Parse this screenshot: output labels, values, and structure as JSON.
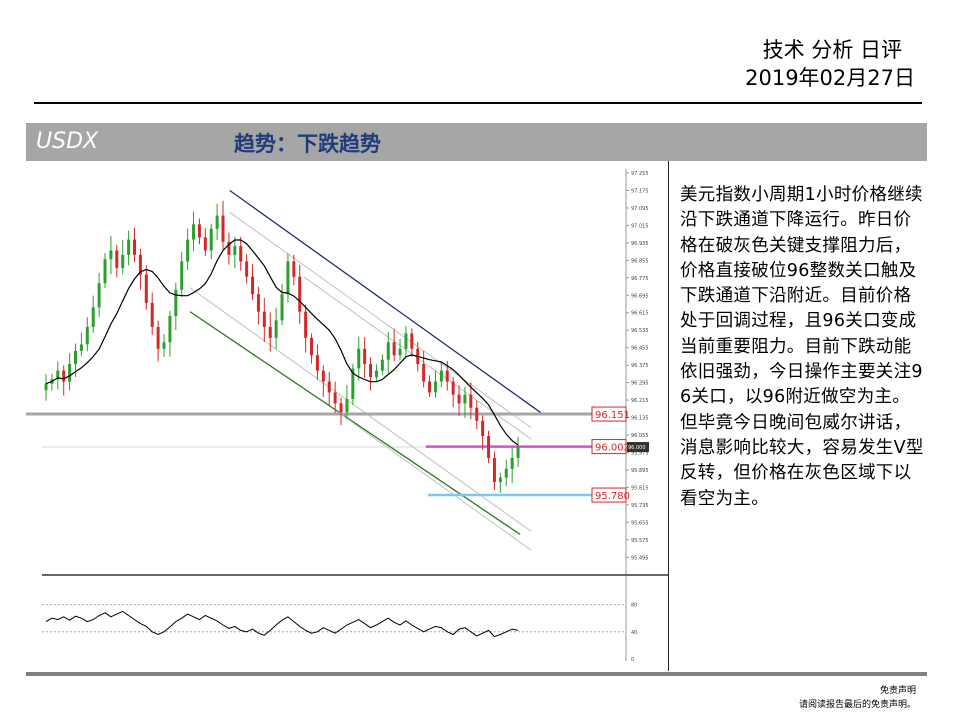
{
  "header": {
    "title": "技术 分析 日评",
    "date": "2019年02月27日"
  },
  "banner": {
    "symbol": "USDX",
    "trend": "趋势：下跌趋势"
  },
  "commentary": "美元指数小周期1小时价格继续沿下跌通道下降运行。昨日价格在破灰色关键支撑阻力后，价格直接破位96整数关口触及下跌通道下沿附近。目前价格处于回调过程，且96关口变成当前重要阻力。目前下跌动能依旧强劲，今日操作主要关注96关口，以96附近做空为主。但毕竟今日晚间包威尔讲话，消息影响比较大，容易发生V型反转，但价格在灰色区域下以看空为主。",
  "disclaimer": {
    "line1": "免责声明",
    "line2": "请阅读报告最后的免责声明。"
  },
  "colors": {
    "bull": "#2ca02c",
    "bear": "#d62728",
    "ma": "#000000",
    "channel_top": "#1f2a8c",
    "channel_bottom": "#2b7a1f",
    "channel_mid": "#c0c0c0",
    "support_gray": "#a6a6a6",
    "level_magenta": "#d94fd0",
    "level_blue": "#7ec8f0"
  },
  "chart_data": {
    "type": "candlestick",
    "timeframe": "1小时",
    "ylim": [
      95.455,
      97.255
    ],
    "yticks": [
      97.255,
      97.175,
      97.095,
      97.015,
      96.935,
      96.855,
      96.775,
      96.695,
      96.615,
      96.535,
      96.455,
      96.375,
      96.295,
      96.215,
      96.135,
      96.055,
      95.975,
      95.895,
      95.815,
      95.735,
      95.655,
      95.575,
      95.495
    ],
    "price_tag": "96.000",
    "levels": [
      {
        "value": 96.151,
        "label": "96.151",
        "color": "support_gray"
      },
      {
        "value": 96.002,
        "label": "96.002",
        "color": "level_magenta"
      },
      {
        "value": 95.78,
        "label": "95.780",
        "color": "level_blue"
      }
    ],
    "channel": {
      "top": [
        [
          0.33,
          97.175
        ],
        [
          0.88,
          96.151
        ]
      ],
      "bottom": [
        [
          0.26,
          96.62
        ],
        [
          0.84,
          95.6
        ]
      ]
    },
    "close": [
      96.29,
      96.31,
      96.35,
      96.3,
      96.38,
      96.44,
      96.47,
      96.55,
      96.64,
      96.75,
      96.86,
      96.9,
      96.82,
      96.88,
      96.95,
      96.88,
      96.79,
      96.66,
      96.55,
      96.45,
      96.48,
      96.6,
      96.72,
      96.85,
      96.95,
      97.02,
      96.96,
      96.9,
      97.0,
      97.06,
      96.94,
      96.88,
      96.92,
      96.85,
      96.78,
      96.7,
      96.62,
      96.55,
      96.5,
      96.58,
      96.7,
      96.85,
      96.78,
      96.62,
      96.5,
      96.42,
      96.35,
      96.3,
      96.25,
      96.2,
      96.16,
      96.22,
      96.36,
      96.45,
      96.38,
      96.32,
      96.35,
      96.4,
      96.48,
      96.42,
      96.45,
      96.52,
      96.45,
      96.38,
      96.3,
      96.25,
      96.3,
      96.35,
      96.3,
      96.24,
      96.2,
      96.24,
      96.18,
      96.12,
      96.05,
      95.95,
      95.84,
      95.86,
      95.9,
      95.95,
      96.0
    ],
    "oscillator": {
      "ylim": [
        0,
        100
      ],
      "ticks": [
        80,
        40,
        0
      ],
      "values": [
        55,
        60,
        58,
        62,
        57,
        63,
        60,
        55,
        58,
        64,
        68,
        62,
        66,
        70,
        64,
        58,
        52,
        48,
        40,
        36,
        40,
        47,
        55,
        60,
        66,
        62,
        58,
        64,
        60,
        56,
        50,
        45,
        48,
        42,
        40,
        44,
        38,
        35,
        42,
        50,
        57,
        62,
        55,
        48,
        42,
        38,
        40,
        46,
        42,
        38,
        44,
        50,
        54,
        58,
        52,
        46,
        50,
        55,
        60,
        54,
        50,
        56,
        50,
        45,
        40,
        44,
        48,
        46,
        40,
        36,
        44,
        46,
        40,
        34,
        38,
        42,
        33,
        36,
        40,
        44,
        42
      ]
    }
  }
}
